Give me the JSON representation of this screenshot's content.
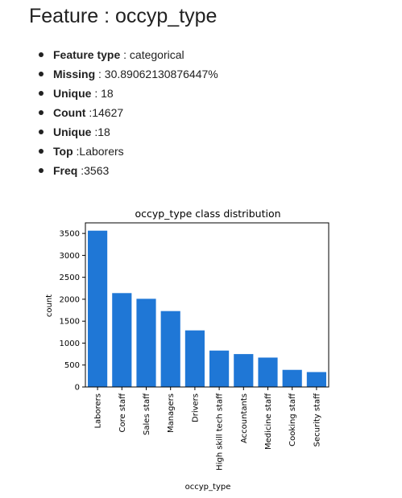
{
  "page": {
    "heading": "Feature : occyp_type"
  },
  "stats": [
    {
      "key": "Feature type",
      "sep": " : ",
      "value": "categorical"
    },
    {
      "key": "Missing",
      "sep": " : ",
      "value": "30.89062130876447%"
    },
    {
      "key": "Unique",
      "sep": " : ",
      "value": "18"
    },
    {
      "key": "Count",
      "sep": " :",
      "value": "14627"
    },
    {
      "key": "Unique",
      "sep": " :",
      "value": "18"
    },
    {
      "key": "Top",
      "sep": " :",
      "value": "Laborers"
    },
    {
      "key": "Freq",
      "sep": " :",
      "value": "3563"
    }
  ],
  "chart_data": {
    "type": "bar",
    "title": "occyp_type class distribution",
    "xlabel": "occyp_type",
    "ylabel": "count",
    "categories": [
      "Laborers",
      "Core staff",
      "Sales staff",
      "Managers",
      "Drivers",
      "High skill tech staff",
      "Accountants",
      "Medicine staff",
      "Cooking staff",
      "Security staff"
    ],
    "values": [
      3563,
      2140,
      2010,
      1730,
      1290,
      830,
      750,
      670,
      390,
      340
    ],
    "ylim": [
      0,
      3741
    ],
    "yticks": [
      0,
      500,
      1000,
      1500,
      2000,
      2500,
      3000,
      3500
    ],
    "grid": false,
    "bar_color": "#1f77d6"
  }
}
